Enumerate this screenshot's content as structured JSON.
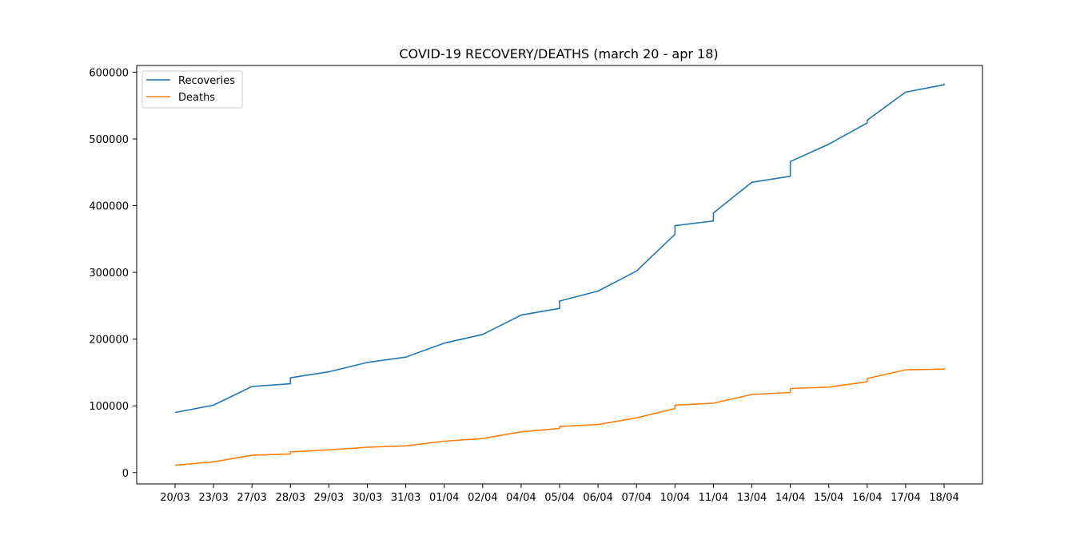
{
  "chart_data": {
    "type": "line",
    "title": "COVID-19 RECOVERY/DEATHS (march 20 - apr 18)",
    "xlabel": "",
    "ylabel": "",
    "categories": [
      "20/03",
      "23/03",
      "27/03",
      "28/03",
      "29/03",
      "30/03",
      "31/03",
      "01/04",
      "02/04",
      "04/04",
      "05/04",
      "06/04",
      "07/04",
      "10/04",
      "11/04",
      "13/04",
      "14/04",
      "15/04",
      "16/04",
      "17/04",
      "18/04"
    ],
    "ylim": [
      -17000,
      610000
    ],
    "yticks": [
      0,
      100000,
      200000,
      300000,
      400000,
      500000,
      600000
    ],
    "ytick_labels": [
      "0",
      "100000",
      "200000",
      "300000",
      "400000",
      "500000",
      "600000"
    ],
    "grid": false,
    "legend_position": "top-left",
    "series": [
      {
        "name": "Recoveries",
        "color": "#1f77b4",
        "points": [
          [
            0,
            90000
          ],
          [
            1,
            101000
          ],
          [
            2,
            129000
          ],
          [
            3,
            133000
          ],
          [
            3,
            142000
          ],
          [
            4,
            151000
          ],
          [
            5,
            165000
          ],
          [
            6,
            173000
          ],
          [
            7,
            194000
          ],
          [
            8,
            207000
          ],
          [
            9,
            236000
          ],
          [
            10,
            246000
          ],
          [
            10,
            257000
          ],
          [
            11,
            272000
          ],
          [
            12,
            302000
          ],
          [
            13,
            357000
          ],
          [
            13,
            370000
          ],
          [
            14,
            377000
          ],
          [
            14,
            389000
          ],
          [
            15,
            435000
          ],
          [
            16,
            444000
          ],
          [
            16,
            466000
          ],
          [
            17,
            492000
          ],
          [
            18,
            524000
          ],
          [
            18,
            528000
          ],
          [
            19,
            570000
          ],
          [
            20,
            581000
          ],
          [
            20,
            583000
          ]
        ]
      },
      {
        "name": "Deaths",
        "color": "#ff7f0e",
        "points": [
          [
            0,
            11000
          ],
          [
            1,
            16000
          ],
          [
            2,
            26000
          ],
          [
            3,
            28000
          ],
          [
            3,
            31000
          ],
          [
            4,
            34000
          ],
          [
            5,
            38000
          ],
          [
            6,
            40000
          ],
          [
            7,
            47000
          ],
          [
            8,
            51000
          ],
          [
            9,
            61000
          ],
          [
            10,
            66000
          ],
          [
            10,
            69000
          ],
          [
            11,
            72000
          ],
          [
            12,
            82000
          ],
          [
            13,
            96000
          ],
          [
            13,
            101000
          ],
          [
            14,
            104000
          ],
          [
            15,
            117000
          ],
          [
            16,
            120000
          ],
          [
            16,
            126000
          ],
          [
            17,
            128000
          ],
          [
            18,
            136000
          ],
          [
            18,
            141000
          ],
          [
            19,
            154000
          ],
          [
            20,
            155000
          ],
          [
            20,
            157000
          ]
        ]
      }
    ]
  }
}
